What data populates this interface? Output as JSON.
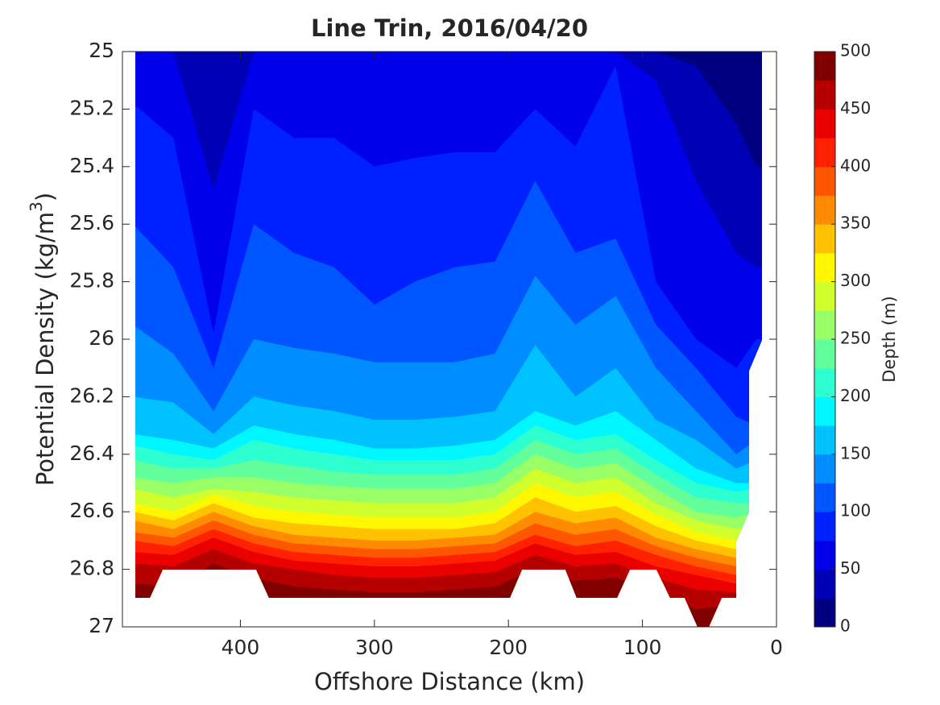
{
  "chart_data": {
    "type": "contourf",
    "title": "Line Trin, 2016/04/20",
    "xlabel": "Offshore Distance (km)",
    "ylabel": [
      "Potential Density (kg/m",
      "3",
      ")"
    ],
    "xlim": [
      488,
      0
    ],
    "xticks": [
      400,
      300,
      200,
      100,
      0
    ],
    "ylim": [
      25,
      27
    ],
    "yticks": [
      25,
      25.2,
      25.4,
      25.6,
      25.8,
      26,
      26.2,
      26.4,
      26.6,
      26.8,
      27
    ],
    "y_inverted": true,
    "x": [
      480,
      450,
      420,
      390,
      360,
      330,
      300,
      270,
      240,
      210,
      180,
      150,
      120,
      90,
      60,
      30,
      15
    ],
    "contours": [
      {
        "level": 25,
        "values": [
          25,
          25,
          25,
          25,
          25,
          25,
          25,
          25,
          25,
          25,
          25,
          25,
          25,
          25,
          25.05,
          25.25,
          25.4
        ]
      },
      {
        "level": 50,
        "values": [
          25,
          25,
          25.48,
          25,
          25,
          25,
          25,
          25,
          25,
          25,
          25,
          25,
          25,
          25.1,
          25.45,
          25.7,
          25.75
        ]
      },
      {
        "level": 75,
        "values": [
          25.18,
          25.3,
          25.98,
          25.2,
          25.3,
          25.3,
          25.4,
          25.37,
          25.35,
          25.35,
          25.2,
          25.33,
          25.05,
          25.8,
          26.0,
          26.1,
          26.0
        ]
      },
      {
        "level": 100,
        "values": [
          25.6,
          25.75,
          26.1,
          25.6,
          25.7,
          25.75,
          25.88,
          25.8,
          25.75,
          25.73,
          25.45,
          25.7,
          25.65,
          25.95,
          26.1,
          26.27,
          26.3
        ]
      },
      {
        "level": 125,
        "values": [
          25.95,
          26.05,
          26.25,
          26.0,
          26.03,
          26.05,
          26.08,
          26.08,
          26.08,
          26.05,
          25.78,
          25.95,
          25.85,
          26.1,
          26.25,
          26.4,
          26.35
        ]
      },
      {
        "level": 150,
        "values": [
          26.2,
          26.22,
          26.33,
          26.2,
          26.23,
          26.25,
          26.28,
          26.28,
          26.27,
          26.25,
          26.02,
          26.2,
          26.1,
          26.28,
          26.35,
          26.45,
          26.42
        ]
      },
      {
        "level": 175,
        "values": [
          26.33,
          26.35,
          26.38,
          26.3,
          26.33,
          26.35,
          26.38,
          26.38,
          26.37,
          26.35,
          26.25,
          26.3,
          26.25,
          26.35,
          26.45,
          26.5,
          26.5
        ]
      },
      {
        "level": 200,
        "values": [
          26.37,
          26.4,
          26.42,
          26.35,
          26.38,
          26.4,
          26.42,
          26.42,
          26.42,
          26.4,
          26.3,
          26.35,
          26.33,
          26.42,
          26.5,
          26.53,
          26.52
        ]
      },
      {
        "level": 225,
        "values": [
          26.42,
          26.45,
          26.45,
          26.42,
          26.44,
          26.46,
          26.47,
          26.47,
          26.47,
          26.45,
          26.35,
          26.4,
          26.38,
          26.47,
          26.55,
          26.57,
          26.57
        ]
      },
      {
        "level": 250,
        "values": [
          26.48,
          26.5,
          26.48,
          26.48,
          26.5,
          26.51,
          26.52,
          26.52,
          26.52,
          26.5,
          26.4,
          26.45,
          26.43,
          26.52,
          26.6,
          26.62,
          26.6
        ]
      },
      {
        "level": 275,
        "values": [
          26.52,
          26.55,
          26.52,
          26.53,
          26.55,
          26.56,
          26.57,
          26.57,
          26.57,
          26.55,
          26.45,
          26.5,
          26.48,
          26.57,
          26.63,
          26.66,
          26.65
        ]
      },
      {
        "level": 300,
        "values": [
          26.57,
          26.6,
          26.54,
          26.58,
          26.6,
          26.61,
          26.62,
          26.62,
          26.62,
          26.6,
          26.5,
          26.55,
          26.53,
          26.61,
          26.67,
          26.7,
          26.7
        ]
      },
      {
        "level": 325,
        "values": [
          26.6,
          26.63,
          26.57,
          26.62,
          26.64,
          26.65,
          26.66,
          26.66,
          26.66,
          26.64,
          26.55,
          26.6,
          26.58,
          26.65,
          26.7,
          26.73,
          26.73
        ]
      },
      {
        "level": 350,
        "values": [
          26.63,
          26.66,
          26.6,
          26.65,
          26.68,
          26.69,
          26.7,
          26.7,
          26.69,
          26.68,
          26.6,
          26.64,
          26.62,
          26.69,
          26.73,
          26.76,
          26.76
        ]
      },
      {
        "level": 375,
        "values": [
          26.67,
          26.69,
          26.63,
          26.68,
          26.71,
          26.72,
          26.73,
          26.73,
          26.72,
          26.71,
          26.64,
          26.68,
          26.66,
          26.72,
          26.76,
          26.79,
          26.79
        ]
      },
      {
        "level": 400,
        "values": [
          26.7,
          26.72,
          26.66,
          26.71,
          26.74,
          26.75,
          26.76,
          26.76,
          26.75,
          26.74,
          26.68,
          26.72,
          26.7,
          26.75,
          26.79,
          26.82,
          26.82
        ]
      },
      {
        "level": 425,
        "values": [
          26.74,
          26.75,
          26.69,
          26.74,
          26.77,
          26.78,
          26.79,
          26.79,
          26.78,
          26.77,
          26.71,
          26.75,
          26.74,
          26.79,
          26.82,
          26.85,
          26.85
        ]
      },
      {
        "level": 450,
        "values": [
          26.78,
          26.79,
          26.73,
          26.78,
          26.8,
          26.82,
          26.83,
          26.83,
          26.82,
          26.81,
          26.75,
          26.79,
          26.78,
          26.83,
          26.87,
          26.88,
          26.88
        ]
      },
      {
        "level": 475,
        "values": [
          26.85,
          26.86,
          26.78,
          26.83,
          26.86,
          26.87,
          26.88,
          26.88,
          26.87,
          26.86,
          26.8,
          26.84,
          26.83,
          26.87,
          26.94,
          26.92,
          26.92
        ]
      }
    ],
    "colorbar": {
      "label": "Depth (m)",
      "lim": [
        0,
        500
      ],
      "ticks": [
        0,
        50,
        100,
        150,
        200,
        250,
        300,
        350,
        400,
        450,
        500
      ],
      "colors": [
        "#000080",
        "#0000b5",
        "#0000eb",
        "#0021ff",
        "#0057ff",
        "#008dff",
        "#00c2ff",
        "#00f7ff",
        "#2effd1",
        "#63ff9c",
        "#99ff66",
        "#d1ff2e",
        "#fff700",
        "#ffc200",
        "#ff8c00",
        "#ff5700",
        "#ff2100",
        "#eb0000",
        "#b50000",
        "#800000"
      ]
    }
  }
}
